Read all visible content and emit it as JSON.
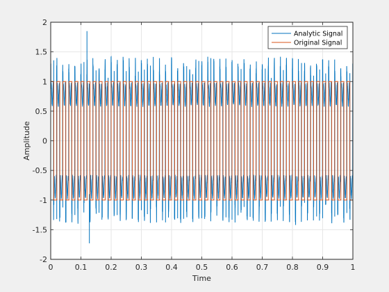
{
  "chart_data": {
    "type": "line",
    "xlabel": "Time",
    "ylabel": "Amplitude",
    "xlim": [
      0,
      1
    ],
    "ylim": [
      -2,
      2
    ],
    "xticks": [
      0,
      0.1,
      0.2,
      0.3,
      0.4,
      0.5,
      0.6,
      0.7,
      0.8,
      0.9,
      1
    ],
    "xtick_labels": [
      "0",
      "0.1",
      "0.2",
      "0.3",
      "0.4",
      "0.5",
      "0.6",
      "0.7",
      "0.8",
      "0.9",
      "1"
    ],
    "yticks": [
      -2,
      -1.5,
      -1,
      -0.5,
      0,
      0.5,
      1,
      1.5,
      2
    ],
    "ytick_labels": [
      "-2",
      "-1.5",
      "-1",
      "-0.5",
      "0",
      "0.5",
      "1",
      "1.5",
      "2"
    ],
    "grid": true,
    "legend_position": "top-right",
    "series": [
      {
        "name": "Analytic Signal",
        "color": "#0072bd",
        "waveform": "square",
        "frequency": 50,
        "amplitude": 1,
        "peak_value": 1.85,
        "trough_value": -1.73
      },
      {
        "name": "Original Signal",
        "color": "#d95319",
        "waveform": "square",
        "frequency": 50,
        "amplitude": 1
      }
    ]
  }
}
